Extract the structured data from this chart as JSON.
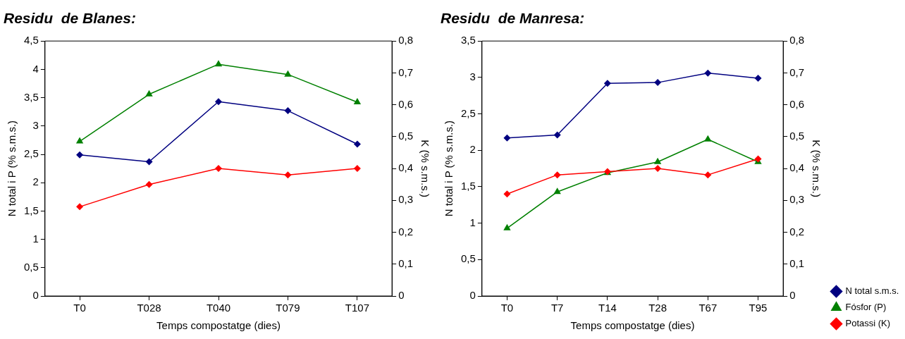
{
  "chart_data": [
    {
      "type": "line",
      "title": "Residu  de Blanes:",
      "xlabel": "Temps compostatge (dies)",
      "ylabel": "N total i P (% s.m.s.)",
      "y2label": "K (% s.m.s.)",
      "categories": [
        "T0",
        "T028",
        "T040",
        "T079",
        "T107"
      ],
      "series": [
        {
          "color": "#000080",
          "marker": "diamond",
          "values": [
            2.49,
            2.37,
            3.43,
            3.27,
            2.68
          ]
        },
        {
          "color": "#008000",
          "marker": "triangle",
          "values": [
            2.73,
            3.56,
            4.09,
            3.91,
            3.42
          ]
        },
        {
          "color": "#ff0000",
          "marker": "diamond",
          "axis": "y2",
          "values": [
            0.28,
            0.35,
            0.4,
            0.38,
            0.4
          ]
        }
      ],
      "ylim": [
        0,
        4.5
      ],
      "yticks": [
        0,
        {
          "value": 0.5,
          "label": "0,5"
        },
        1,
        {
          "value": 1.5,
          "label": "1,5"
        },
        2,
        {
          "value": 2.5,
          "label": "2,5"
        },
        3,
        {
          "value": 3.5,
          "label": "3,5"
        },
        4,
        {
          "value": 4.5,
          "label": "4,5"
        }
      ],
      "y2lim": [
        0,
        0.8
      ],
      "y2ticks": [
        0,
        {
          "value": 0.1,
          "label": "0,1"
        },
        {
          "value": 0.2,
          "label": "0,2"
        },
        {
          "value": 0.3,
          "label": "0,3"
        },
        {
          "value": 0.4,
          "label": "0,4"
        },
        {
          "value": 0.5,
          "label": "0,5"
        },
        {
          "value": 0.6,
          "label": "0,6"
        },
        {
          "value": 0.7,
          "label": "0,7"
        },
        {
          "value": 0.8,
          "label": "0,8"
        }
      ],
      "grid": false,
      "legend": false
    },
    {
      "type": "line",
      "title": "Residu  de Manresa:",
      "xlabel": "Temps compostatge (dies)",
      "ylabel": "N total i P (% s.m.s.)",
      "y2label": "K (% s.m.s.)",
      "categories": [
        "T0",
        "T7",
        "T14",
        "T28",
        "T67",
        "T95"
      ],
      "series": [
        {
          "name": "N total s.m.s.",
          "color": "#000080",
          "marker": "diamond",
          "values": [
            2.17,
            2.21,
            2.92,
            2.93,
            3.06,
            2.99
          ]
        },
        {
          "name": "Fósfor (P)",
          "color": "#008000",
          "marker": "triangle",
          "values": [
            0.93,
            1.43,
            1.69,
            1.84,
            2.15,
            1.84
          ]
        },
        {
          "name": "Potassi (K)",
          "color": "#ff0000",
          "marker": "diamond",
          "axis": "y2",
          "values": [
            0.32,
            0.38,
            0.39,
            0.4,
            0.38,
            0.43
          ]
        }
      ],
      "ylim": [
        0,
        3.5
      ],
      "yticks": [
        0,
        {
          "value": 0.5,
          "label": "0,5"
        },
        1,
        {
          "value": 1.5,
          "label": "1,5"
        },
        2,
        {
          "value": 2.5,
          "label": "2,5"
        },
        3,
        {
          "value": 3.5,
          "label": "3,5"
        }
      ],
      "y2lim": [
        0,
        0.8
      ],
      "y2ticks": [
        0,
        {
          "value": 0.1,
          "label": "0,1"
        },
        {
          "value": 0.2,
          "label": "0,2"
        },
        {
          "value": 0.3,
          "label": "0,3"
        },
        {
          "value": 0.4,
          "label": "0,4"
        },
        {
          "value": 0.5,
          "label": "0,5"
        },
        {
          "value": 0.6,
          "label": "0,6"
        },
        {
          "value": 0.7,
          "label": "0,7"
        },
        {
          "value": 0.8,
          "label": "0,8"
        }
      ],
      "grid": false,
      "legend": "bottom right"
    }
  ]
}
